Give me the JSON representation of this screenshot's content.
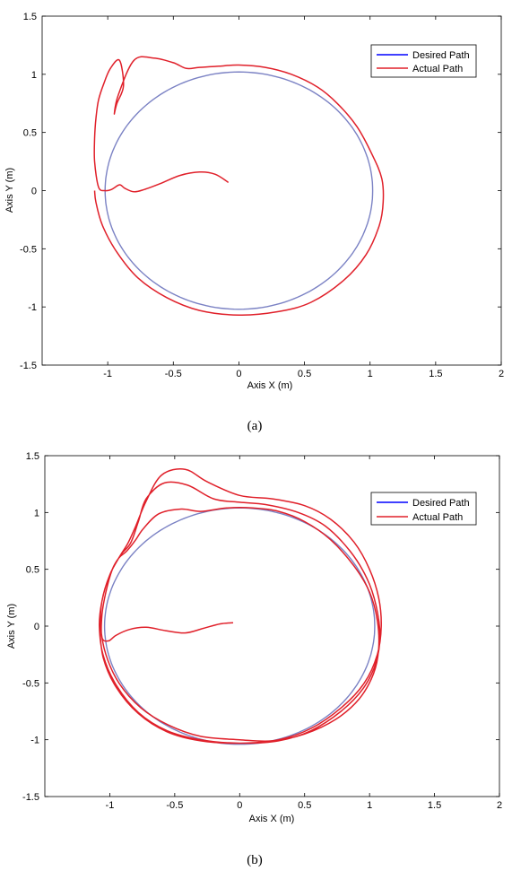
{
  "chart_data": [
    {
      "type": "line",
      "caption": "(a)",
      "xlabel": "Axis X (m)",
      "ylabel": "Axis Y (m)",
      "xlim": [
        -1.5,
        2
      ],
      "ylim": [
        -1.5,
        1.5
      ],
      "xticks": [
        "-1",
        "-0.5",
        "0",
        "0.5",
        "1",
        "1.5",
        "2"
      ],
      "xtick_values": [
        -1,
        -0.5,
        0,
        0.5,
        1,
        1.5,
        2
      ],
      "yticks": [
        "1.5",
        "1",
        "0.5",
        "0",
        "-0.5",
        "-1",
        "-1.5"
      ],
      "ytick_values": [
        1.5,
        1,
        0.5,
        0,
        -0.5,
        -1,
        -1.5
      ],
      "grid": false,
      "legend": "top-right",
      "colors": {
        "desired": "#7b82c4",
        "actual": "#e0202a",
        "legend_desired": "#0000ff",
        "legend_actual": "#e0202a"
      },
      "series": [
        {
          "name": "Desired Path",
          "circle": {
            "cx": 0,
            "cy": 0,
            "r": 1.02
          }
        },
        {
          "name": "Actual Path",
          "x": [
            -0.08,
            -0.18,
            -0.3,
            -0.45,
            -0.6,
            -0.72,
            -0.8,
            -0.87,
            -0.91,
            -0.97,
            -1.02,
            -1.07,
            -1.1,
            -1.1,
            -1.09,
            -1.07,
            -1.03,
            -0.98,
            -0.91,
            -0.88,
            -0.93,
            -0.95,
            -0.92,
            -0.8,
            -0.65,
            -0.5,
            -0.4,
            -0.3,
            -0.15,
            0,
            0.2,
            0.4,
            0.6,
            0.75,
            0.9,
            1.02,
            1.09,
            1.1,
            1.07,
            0.97,
            0.8,
            0.55,
            0.3,
            0,
            -0.3,
            -0.55,
            -0.77,
            -0.93,
            -1.04,
            -1.09,
            -1.1
          ],
          "y": [
            0.07,
            0.14,
            0.16,
            0.13,
            0.06,
            0.01,
            -0.01,
            0.02,
            0.05,
            0.01,
            0.0,
            0.03,
            0.25,
            0.45,
            0.62,
            0.78,
            0.92,
            1.05,
            1.12,
            0.9,
            0.75,
            0.66,
            0.82,
            1.12,
            1.14,
            1.1,
            1.05,
            1.06,
            1.07,
            1.08,
            1.06,
            1.0,
            0.89,
            0.75,
            0.55,
            0.3,
            0.1,
            -0.1,
            -0.3,
            -0.55,
            -0.77,
            -0.96,
            -1.04,
            -1.07,
            -1.03,
            -0.92,
            -0.75,
            -0.53,
            -0.3,
            -0.1,
            0.0
          ]
        }
      ]
    },
    {
      "type": "line",
      "caption": "(b)",
      "xlabel": "Axis X (m)",
      "ylabel": "Axis Y (m)",
      "xlim": [
        -1.5,
        2
      ],
      "ylim": [
        -1.5,
        1.5
      ],
      "xticks": [
        "-1",
        "-0.5",
        "0",
        "0.5",
        "1",
        "1.5",
        "2"
      ],
      "xtick_values": [
        -1,
        -0.5,
        0,
        0.5,
        1,
        1.5,
        2
      ],
      "yticks": [
        "1.5",
        "1",
        "0.5",
        "0",
        "-0.5",
        "-1",
        "-1.5"
      ],
      "ytick_values": [
        1.5,
        1,
        0.5,
        0,
        -0.5,
        -1,
        -1.5
      ],
      "grid": false,
      "legend": "top-right",
      "colors": {
        "desired": "#7b82c4",
        "actual": "#e0202a",
        "legend_desired": "#0000ff",
        "legend_actual": "#e0202a"
      },
      "series": [
        {
          "name": "Desired Path",
          "circle": {
            "cx": 0,
            "cy": 0,
            "r": 1.04
          }
        },
        {
          "name": "Actual Path",
          "x": [
            -0.05,
            -0.15,
            -0.28,
            -0.42,
            -0.57,
            -0.72,
            -0.85,
            -0.95,
            -1.01,
            -1.06,
            -1.06,
            -1.03,
            -0.98,
            -0.93,
            -0.87,
            -0.8,
            -0.74,
            -0.62,
            -0.45,
            -0.3,
            -0.1,
            0.1,
            0.3,
            0.5,
            0.7,
            0.88,
            1.0,
            1.06,
            1.07,
            1.03,
            0.92,
            0.74,
            0.5,
            0.25,
            0,
            -0.3,
            -0.55,
            -0.76,
            -0.93,
            -1.03,
            -1.07,
            -1.06,
            -1.0,
            -0.92,
            -0.84,
            -0.78,
            -0.72,
            -0.58,
            -0.4,
            -0.2,
            0,
            0.2,
            0.45,
            0.66,
            0.85,
            0.98,
            1.05,
            1.08,
            1.05,
            0.95,
            0.78,
            0.55,
            0.3,
            0,
            -0.3,
            -0.56,
            -0.78,
            -0.95,
            -1.05,
            -1.08,
            -1.06,
            -1.0,
            -0.92,
            -0.86,
            -0.8,
            -0.72,
            -0.6,
            -0.42,
            -0.25,
            0,
            0.25,
            0.5,
            0.7,
            0.88,
            1.0,
            1.07,
            1.09,
            1.06,
            0.96,
            0.78,
            0.55,
            0.3,
            0,
            -0.3,
            -0.56,
            -0.78,
            -0.95,
            -1.05,
            -1.08
          ],
          "y": [
            0.03,
            0.02,
            -0.02,
            -0.06,
            -0.04,
            -0.01,
            -0.03,
            -0.08,
            -0.13,
            -0.1,
            0.1,
            0.3,
            0.5,
            0.6,
            0.66,
            0.76,
            0.86,
            0.99,
            1.03,
            1.01,
            1.04,
            1.04,
            1.01,
            0.92,
            0.76,
            0.53,
            0.3,
            0.05,
            -0.2,
            -0.42,
            -0.64,
            -0.82,
            -0.95,
            -1.01,
            -1.0,
            -0.97,
            -0.87,
            -0.72,
            -0.5,
            -0.25,
            0.0,
            0.22,
            0.45,
            0.62,
            0.73,
            0.92,
            1.12,
            1.26,
            1.24,
            1.12,
            1.09,
            1.07,
            1.0,
            0.88,
            0.66,
            0.42,
            0.18,
            -0.08,
            -0.32,
            -0.55,
            -0.75,
            -0.92,
            -1.01,
            -1.03,
            -1.0,
            -0.92,
            -0.76,
            -0.52,
            -0.26,
            0.0,
            0.22,
            0.45,
            0.62,
            0.73,
            0.88,
            1.1,
            1.33,
            1.38,
            1.27,
            1.15,
            1.12,
            1.06,
            0.94,
            0.74,
            0.5,
            0.25,
            0.0,
            -0.25,
            -0.5,
            -0.72,
            -0.9,
            -1.0,
            -1.03,
            -1.01,
            -0.93,
            -0.77,
            -0.54,
            -0.28,
            0.0
          ]
        }
      ]
    }
  ]
}
